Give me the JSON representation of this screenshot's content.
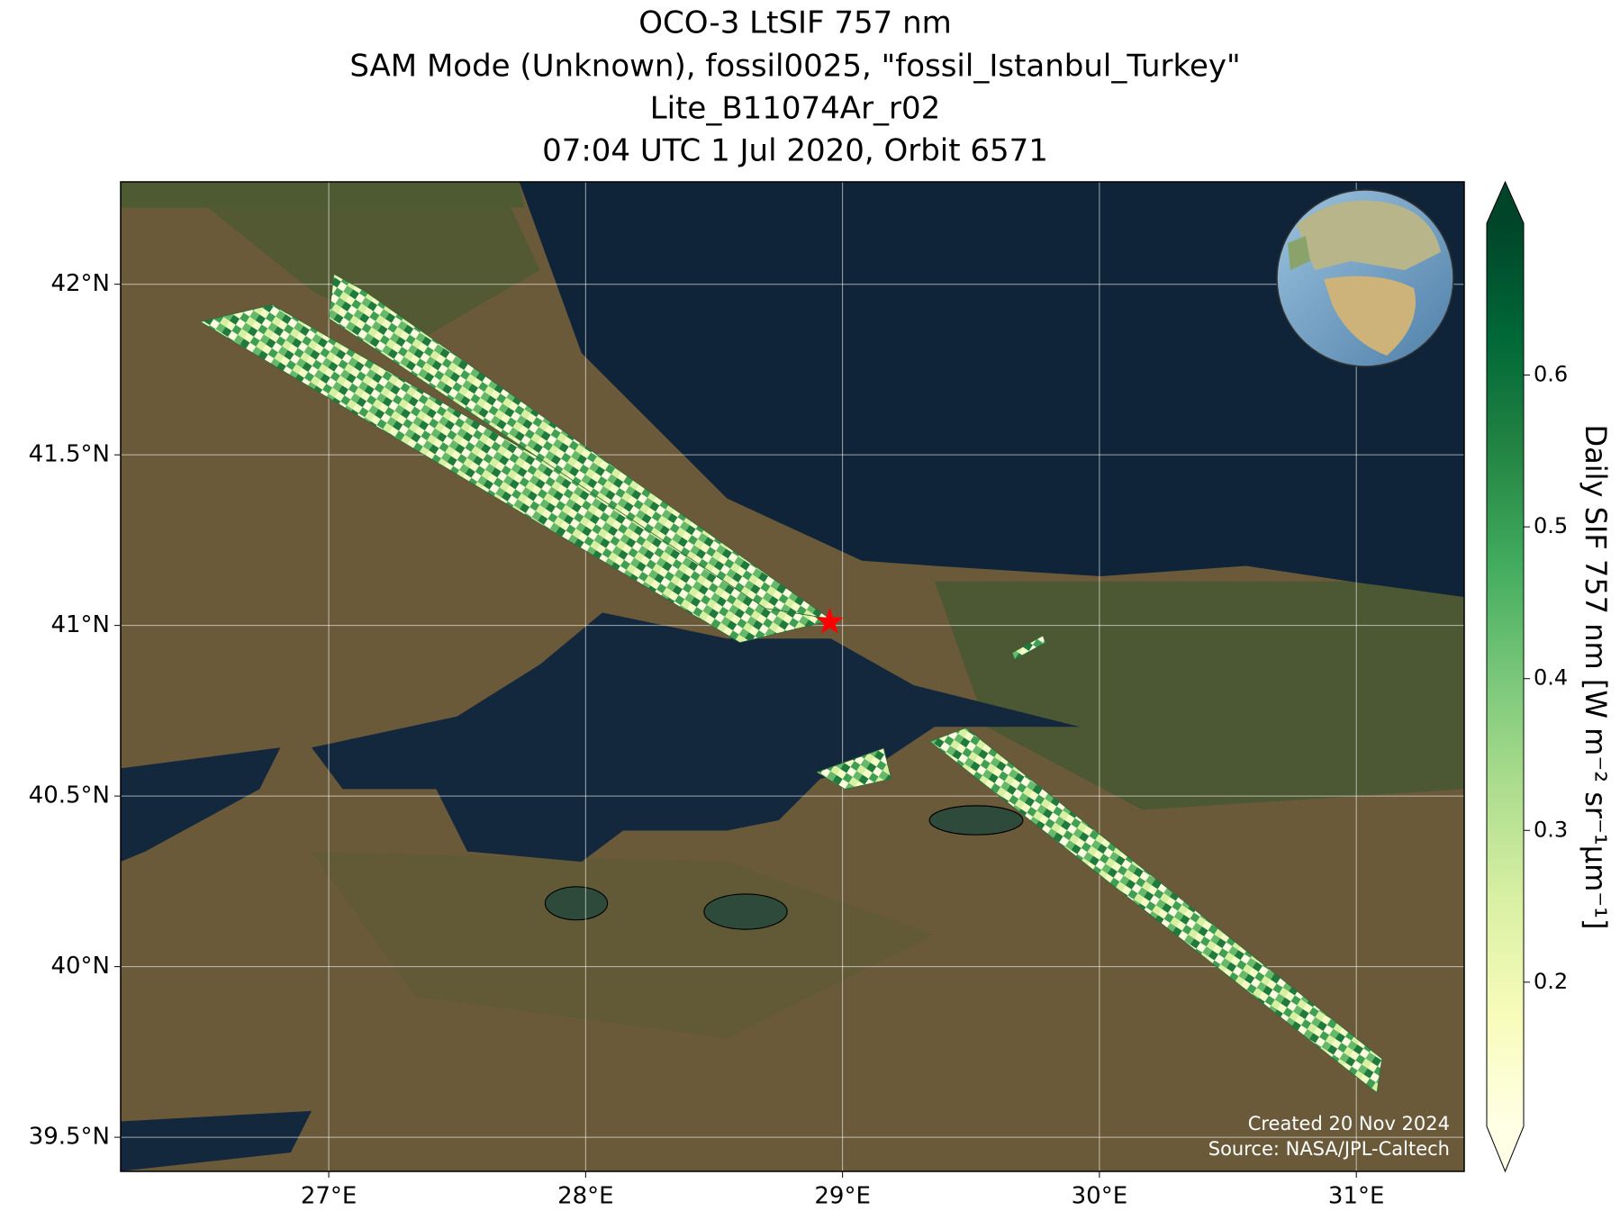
{
  "chart_data": {
    "type": "map",
    "title": [
      "OCO-3 LtSIF 757 nm",
      "SAM Mode (Unknown), fossil0025, \"fossil_Istanbul_Turkey\"",
      "Lite_B11074Ar_r02",
      "07:04 UTC 1 Jul 2020, Orbit 6571"
    ],
    "xlim": [
      26.19,
      31.42
    ],
    "ylim": [
      39.4,
      42.3
    ],
    "xticks": [
      {
        "value": 27,
        "label": "27°E"
      },
      {
        "value": 28,
        "label": "28°E"
      },
      {
        "value": 29,
        "label": "29°E"
      },
      {
        "value": 30,
        "label": "30°E"
      },
      {
        "value": 31,
        "label": "31°E"
      }
    ],
    "yticks": [
      {
        "value": 39.5,
        "label": "39.5°N"
      },
      {
        "value": 40,
        "label": "40°N"
      },
      {
        "value": 40.5,
        "label": "40.5°N"
      },
      {
        "value": 41,
        "label": "41°N"
      },
      {
        "value": 41.5,
        "label": "41.5°N"
      },
      {
        "value": 42,
        "label": "42°N"
      }
    ],
    "grid": true,
    "swaths": [
      {
        "lon": [
          26.5,
          26.78,
          28.93,
          28.6
        ],
        "lat": [
          41.89,
          41.94,
          41.01,
          40.95
        ]
      },
      {
        "lon": [
          27.02,
          27.14,
          28.95,
          28.7,
          27.0
        ],
        "lat": [
          42.03,
          41.98,
          41.02,
          41.05,
          41.9
        ]
      },
      {
        "lon": [
          29.34,
          29.48,
          31.1,
          31.08
        ],
        "lat": [
          40.66,
          40.7,
          39.73,
          39.63
        ]
      },
      {
        "lon": [
          28.9,
          29.16,
          29.19,
          29.01
        ],
        "lat": [
          40.57,
          40.64,
          40.55,
          40.52
        ]
      },
      {
        "lon": [
          29.66,
          29.78,
          29.79,
          29.67
        ],
        "lat": [
          40.92,
          40.97,
          40.95,
          40.9
        ]
      }
    ],
    "target": {
      "lon": 28.95,
      "lat": 41.01,
      "color": "#ff0000"
    },
    "colorbar": {
      "label": "Daily SIF 757 nm [W m⁻² sr⁻¹μm⁻¹]",
      "clim": [
        0.105,
        0.7
      ],
      "ticks": [
        0.2,
        0.3,
        0.4,
        0.5,
        0.6
      ],
      "colormap": [
        "#ffffe5",
        "#f7fcb9",
        "#d9f0a3",
        "#addd8e",
        "#78c679",
        "#41ab5d",
        "#238443",
        "#006837",
        "#004529"
      ]
    },
    "credits": [
      "Created 20 Nov 2024",
      "Source: NASA/JPL-Caltech"
    ]
  }
}
